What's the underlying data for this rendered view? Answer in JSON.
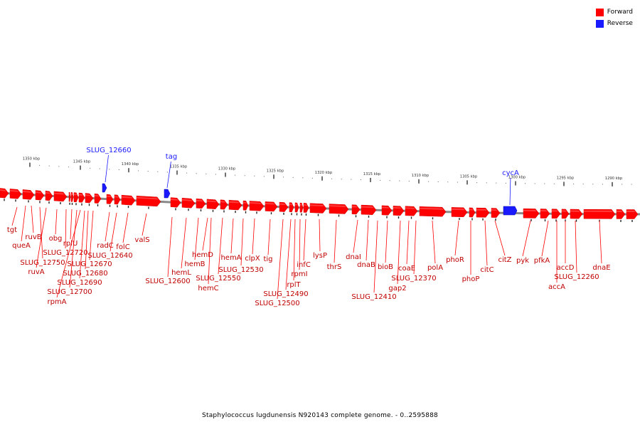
{
  "legend": {
    "items": [
      {
        "label": "Forward",
        "color": "#ff0000"
      },
      {
        "label": "Reverse",
        "color": "#1a1aff"
      }
    ]
  },
  "caption": "Staphylococcus lugdunensis N920143 complete genome. - 0..2595888",
  "colors": {
    "forward": "#ff0000",
    "reverse": "#1a1aff",
    "backbone": "#888888"
  },
  "scale": {
    "unit": "kbp",
    "labels": [
      "1350 kbp",
      "1345 kbp",
      "1340 kbp",
      "1335 kbp",
      "1330 kbp",
      "1325 kbp",
      "1320 kbp",
      "1315 kbp",
      "1310 kbp",
      "1305 kbp",
      "1300 kbp",
      "1295 kbp",
      "1290 kbp"
    ]
  },
  "features": {
    "forward_labels": [
      "tgt",
      "queA",
      "ruvB",
      "SLUG_12750",
      "ruvA",
      "obg",
      "SLUG_12720",
      "rplU",
      "SLUG_12700",
      "rpmA",
      "SLUG_12690",
      "SLUG_12680",
      "SLUG_12670",
      "radC",
      "SLUG_12640",
      "folC",
      "valS",
      "SLUG_12600",
      "hemL",
      "hemB",
      "hemD",
      "SLUG_12550",
      "hemC",
      "hemA",
      "SLUG_12530",
      "clpX",
      "tig",
      "SLUG_12500",
      "SLUG_12490",
      "rplT",
      "rpmI",
      "infC",
      "lysP",
      "thrS",
      "dnaI",
      "dnaB",
      "SLUG_12410",
      "bioB",
      "gap2",
      "coaE",
      "SLUG_12370",
      "polA",
      "phoR",
      "phoP",
      "citC",
      "citZ",
      "pyk",
      "pfkA",
      "accA",
      "accD",
      "SLUG_12260",
      "dnaE"
    ],
    "reverse_labels": [
      "SLUG_12660",
      "tag",
      "cycA"
    ]
  }
}
